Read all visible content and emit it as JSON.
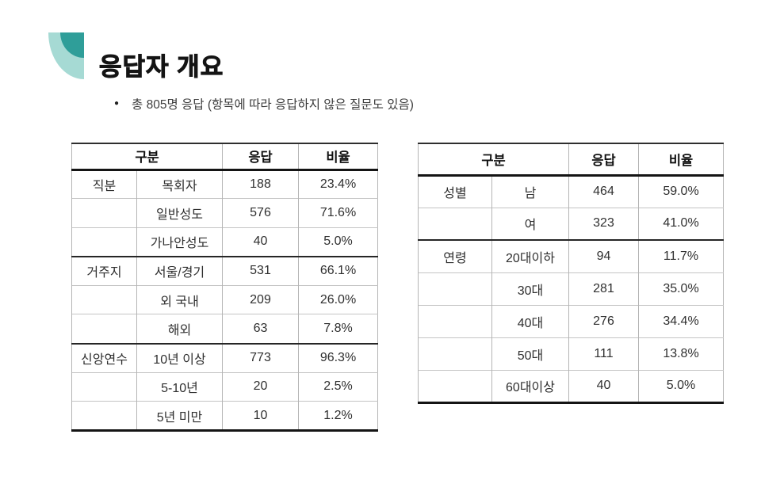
{
  "page": {
    "title": "응답자 개요",
    "bullet": "총 805명 응답 (항목에 따라 응답하지 않은 질문도 있음)"
  },
  "colors": {
    "logo_light": "#a6dad4",
    "logo_dark": "#2f9e99",
    "title_text": "#141414",
    "thick_border": "#141414",
    "thin_border": "#b5b5b5"
  },
  "tables": [
    {
      "id": "left",
      "headers": [
        {
          "label": "구분",
          "span": 2
        },
        {
          "label": "응답",
          "span": 1
        },
        {
          "label": "비율",
          "span": 1
        }
      ],
      "rows": [
        {
          "group": "직분",
          "category": "목회자",
          "count": "188",
          "ratio": "23.4%",
          "new_group": true
        },
        {
          "group": "",
          "category": "일반성도",
          "count": "576",
          "ratio": "71.6%",
          "new_group": false
        },
        {
          "group": "",
          "category": "가나안성도",
          "count": "40",
          "ratio": "5.0%",
          "new_group": false
        },
        {
          "group": "거주지",
          "category": "서울/경기",
          "count": "531",
          "ratio": "66.1%",
          "new_group": true
        },
        {
          "group": "",
          "category": "외 국내",
          "count": "209",
          "ratio": "26.0%",
          "new_group": false
        },
        {
          "group": "",
          "category": "해외",
          "count": "63",
          "ratio": "7.8%",
          "new_group": false
        },
        {
          "group": "신앙연수",
          "category": "10년 이상",
          "count": "773",
          "ratio": "96.3%",
          "new_group": true
        },
        {
          "group": "",
          "category": "5-10년",
          "count": "20",
          "ratio": "2.5%",
          "new_group": false
        },
        {
          "group": "",
          "category": "5년 미만",
          "count": "10",
          "ratio": "1.2%",
          "new_group": false
        }
      ]
    },
    {
      "id": "right",
      "headers": [
        {
          "label": "구분",
          "span": 2
        },
        {
          "label": "응답",
          "span": 1
        },
        {
          "label": "비율",
          "span": 1
        }
      ],
      "rows": [
        {
          "group": "성별",
          "category": "남",
          "count": "464",
          "ratio": "59.0%",
          "new_group": true
        },
        {
          "group": "",
          "category": "여",
          "count": "323",
          "ratio": "41.0%",
          "new_group": false
        },
        {
          "group": "연령",
          "category": "20대이하",
          "count": "94",
          "ratio": "11.7%",
          "new_group": true
        },
        {
          "group": "",
          "category": "30대",
          "count": "281",
          "ratio": "35.0%",
          "new_group": false
        },
        {
          "group": "",
          "category": "40대",
          "count": "276",
          "ratio": "34.4%",
          "new_group": false
        },
        {
          "group": "",
          "category": "50대",
          "count": "111",
          "ratio": "13.8%",
          "new_group": false
        },
        {
          "group": "",
          "category": "60대이상",
          "count": "40",
          "ratio": "5.0%",
          "new_group": false
        }
      ]
    }
  ]
}
